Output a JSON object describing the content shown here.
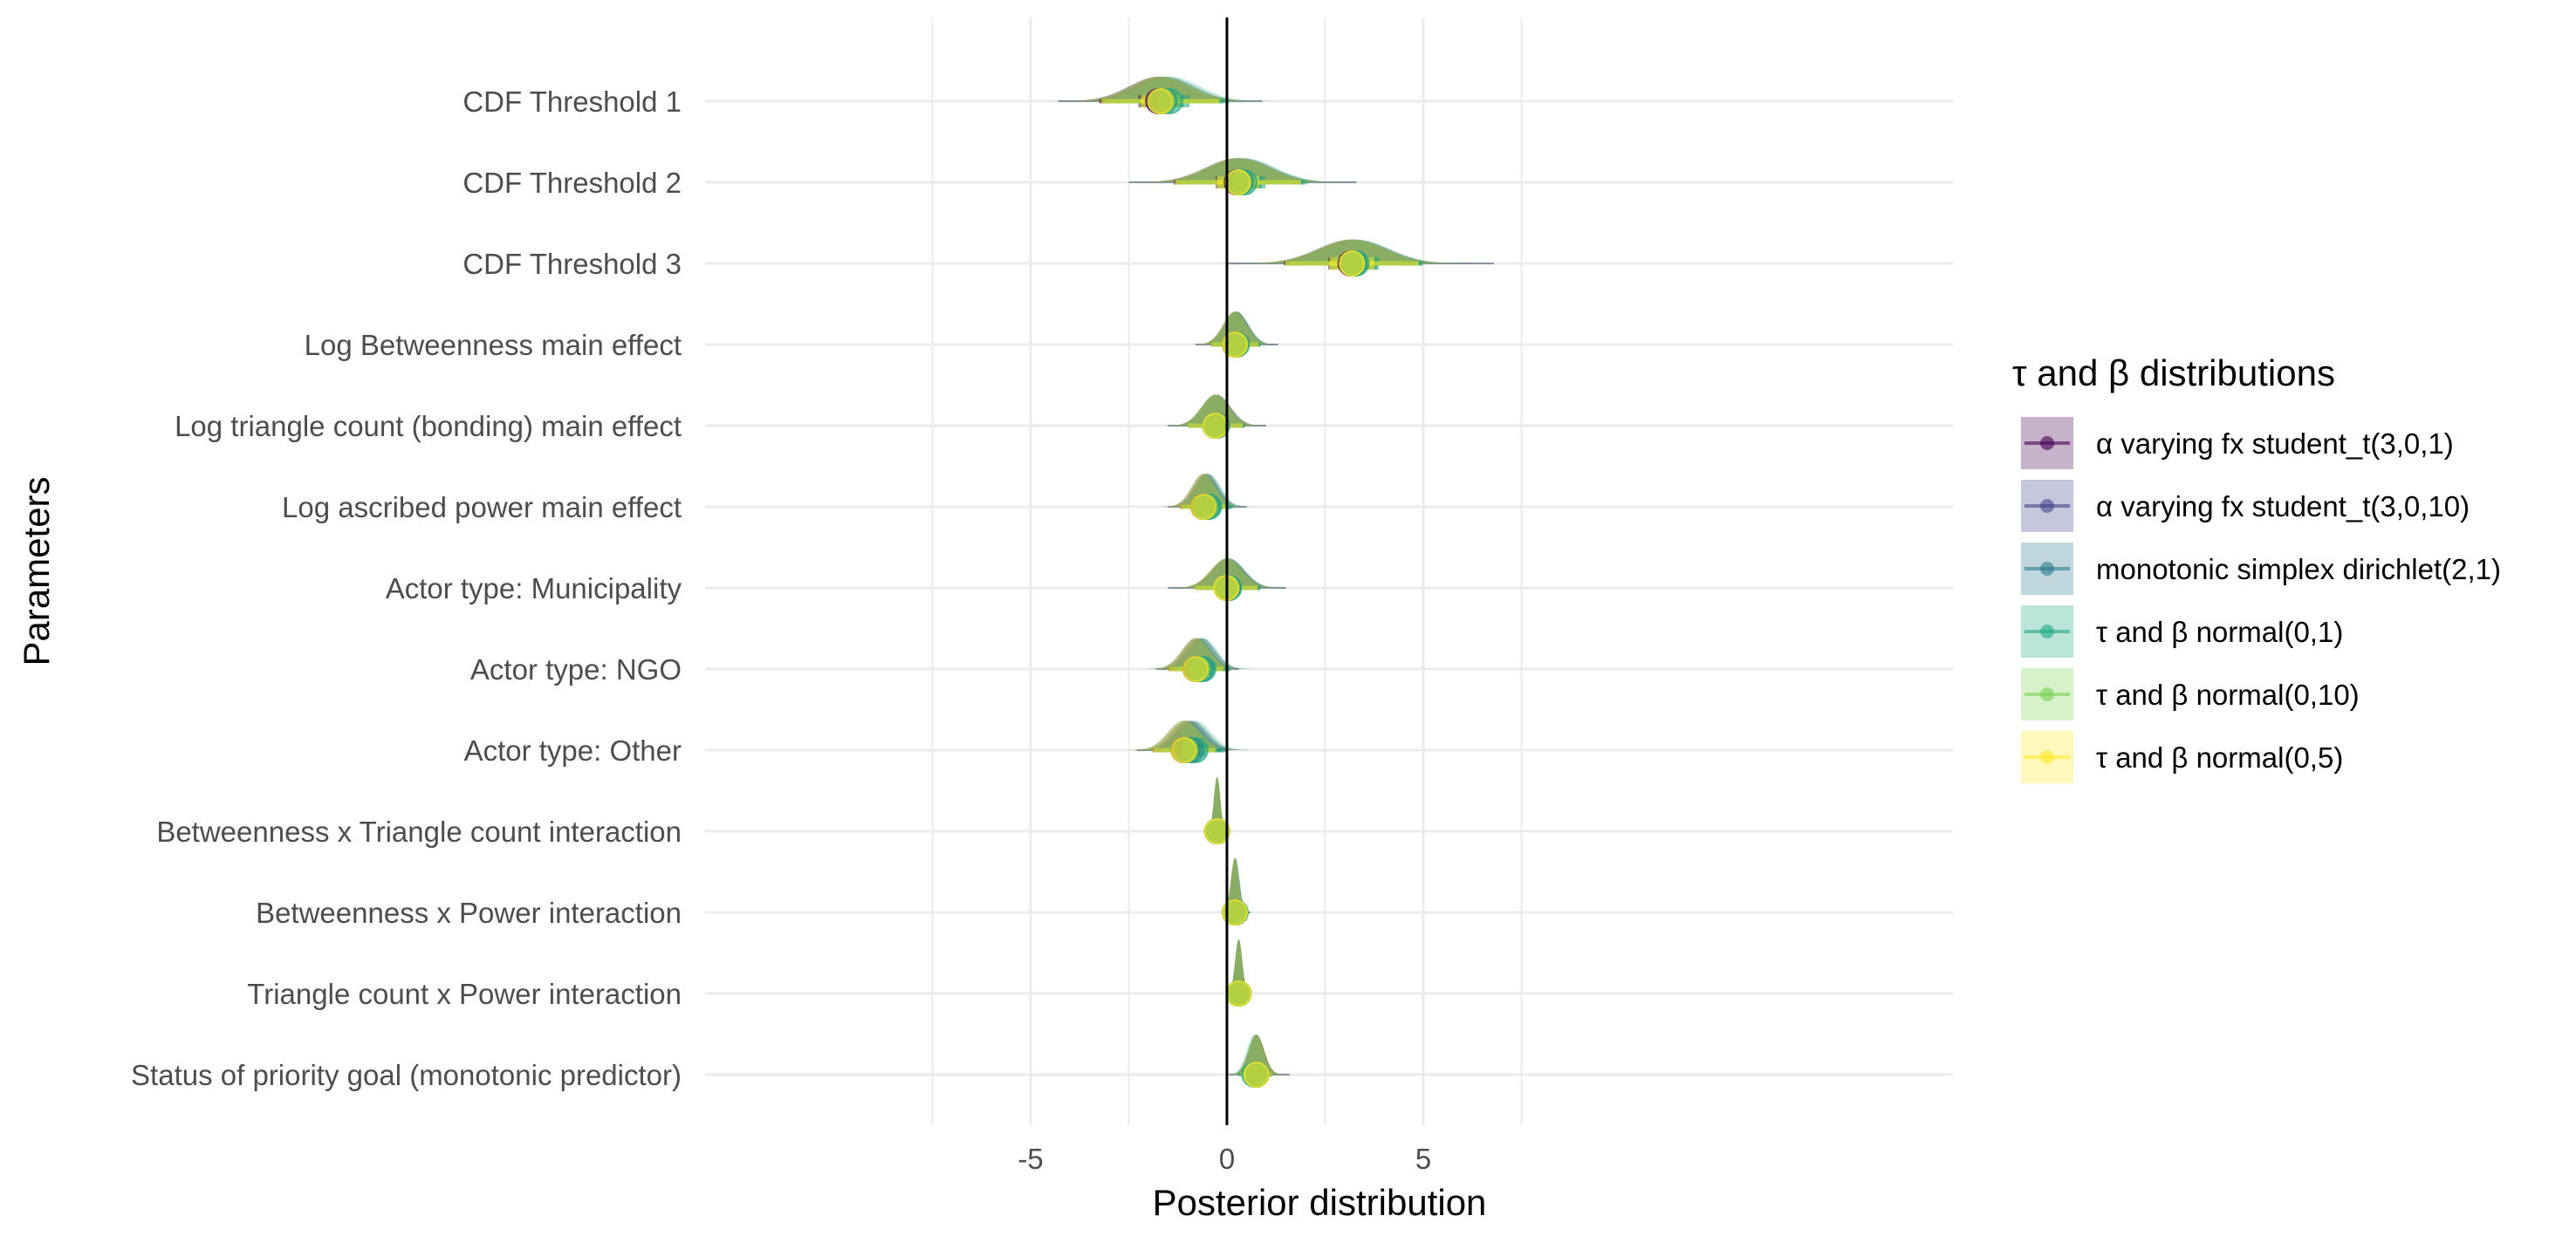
{
  "chart_data": {
    "type": "ridgeline",
    "xlabel": "Posterior distribution",
    "ylabel": "Parameters",
    "xlim": [
      -7,
      9.2
    ],
    "xticks": [
      -5,
      0,
      5
    ],
    "xtick_labels": [
      "-5",
      "0",
      "5"
    ],
    "grid": true,
    "reference_line_x": 0,
    "legend": {
      "title": "τ and β distributions",
      "position": "right",
      "entries": [
        "α varying fx student_t(3,0,1)",
        "α varying fx student_t(3,0,10)",
        "monotonic simplex dirichlet(2,1)",
        "τ and β normal(0,1)",
        "τ and β normal(0,10)",
        "τ and β normal(0,5)"
      ]
    },
    "colors": [
      "#440154",
      "#414487",
      "#2a788e",
      "#22a884",
      "#7ad151",
      "#fde725"
    ],
    "parameters": [
      {
        "name": "CDF Threshold 1",
        "estimates": [
          -1.75,
          -1.7,
          -1.6,
          -1.45,
          -1.65,
          -1.7
        ],
        "spread": 0.75,
        "range": [
          -4.3,
          0.9
        ]
      },
      {
        "name": "CDF Threshold 2",
        "estimates": [
          0.25,
          0.3,
          0.35,
          0.45,
          0.3,
          0.28
        ],
        "spread": 0.8,
        "range": [
          -2.5,
          3.3
        ]
      },
      {
        "name": "CDF Threshold 3",
        "estimates": [
          3.15,
          3.2,
          3.25,
          3.3,
          3.2,
          3.18
        ],
        "spread": 0.85,
        "range": [
          0.0,
          6.8
        ]
      },
      {
        "name": "Log Betweenness main effect",
        "estimates": [
          0.2,
          0.22,
          0.25,
          0.25,
          0.22,
          0.2
        ],
        "spread": 0.3,
        "range": [
          -0.8,
          1.3
        ]
      },
      {
        "name": "Log triangle count (bonding) main effect",
        "estimates": [
          -0.3,
          -0.28,
          -0.25,
          -0.3,
          -0.28,
          -0.3
        ],
        "spread": 0.35,
        "range": [
          -1.5,
          1.0
        ]
      },
      {
        "name": "Log ascribed power main effect",
        "estimates": [
          -0.6,
          -0.55,
          -0.5,
          -0.45,
          -0.55,
          -0.6
        ],
        "spread": 0.3,
        "range": [
          -1.5,
          0.5
        ]
      },
      {
        "name": "Actor type: Municipality",
        "estimates": [
          0.0,
          0.0,
          0.05,
          0.05,
          0.0,
          -0.02
        ],
        "spread": 0.4,
        "range": [
          -1.5,
          1.5
        ]
      },
      {
        "name": "Actor type: NGO",
        "estimates": [
          -0.8,
          -0.75,
          -0.65,
          -0.6,
          -0.75,
          -0.8
        ],
        "spread": 0.35,
        "range": [
          -1.8,
          0.3
        ]
      },
      {
        "name": "Actor type: Other",
        "estimates": [
          -1.1,
          -1.0,
          -0.9,
          -0.8,
          -1.05,
          -1.1
        ],
        "spread": 0.4,
        "range": [
          -2.3,
          0.0
        ]
      },
      {
        "name": "Betweenness x Triangle count interaction",
        "estimates": [
          -0.25,
          -0.25,
          -0.25,
          -0.25,
          -0.25,
          -0.25
        ],
        "spread": 0.08,
        "range": [
          -0.5,
          0.0
        ]
      },
      {
        "name": "Betweenness x Power interaction",
        "estimates": [
          0.2,
          0.2,
          0.22,
          0.22,
          0.2,
          0.2
        ],
        "spread": 0.1,
        "range": [
          0.0,
          0.6
        ]
      },
      {
        "name": "Triangle count x Power interaction",
        "estimates": [
          0.3,
          0.3,
          0.3,
          0.3,
          0.3,
          0.3
        ],
        "spread": 0.09,
        "range": [
          0.05,
          0.6
        ]
      },
      {
        "name": "Status of priority goal (monotonic predictor)",
        "estimates": [
          0.75,
          0.75,
          0.75,
          0.7,
          0.75,
          0.75
        ],
        "spread": 0.2,
        "range": [
          0.05,
          1.6
        ]
      }
    ]
  }
}
